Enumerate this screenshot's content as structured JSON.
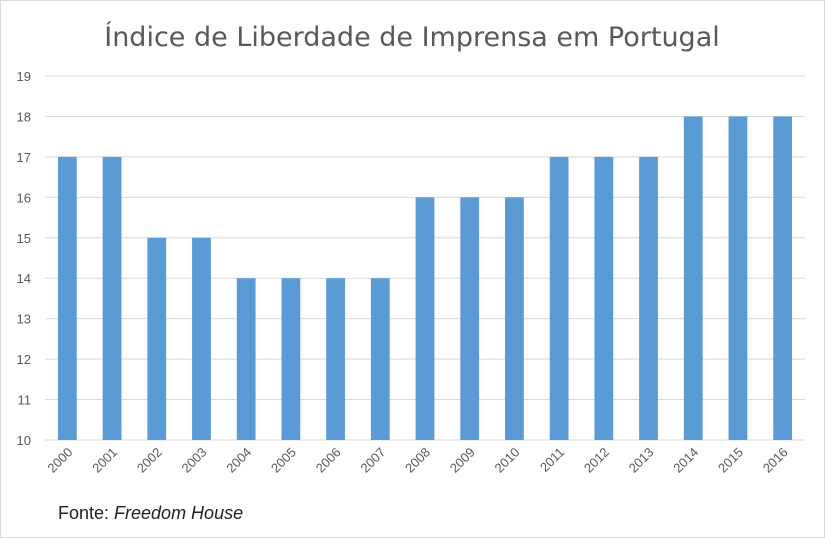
{
  "colors": {
    "bar": "#5b9bd5",
    "grid": "#d9d9d9",
    "text": "#595959"
  },
  "source": {
    "prefix": "Fonte: ",
    "name": "Freedom House"
  },
  "chart_data": {
    "type": "bar",
    "title": "Índice de Liberdade de Imprensa em Portugal",
    "xlabel": "",
    "ylabel": "",
    "categories": [
      "2000",
      "2001",
      "2002",
      "2003",
      "2004",
      "2005",
      "2006",
      "2007",
      "2008",
      "2009",
      "2010",
      "2011",
      "2012",
      "2013",
      "2014",
      "2015",
      "2016"
    ],
    "values": [
      17,
      17,
      15,
      15,
      14,
      14,
      14,
      14,
      16,
      16,
      16,
      17,
      17,
      17,
      18,
      18,
      18
    ],
    "ylim": [
      10,
      19
    ],
    "yticks": [
      "10",
      "11",
      "12",
      "13",
      "14",
      "15",
      "16",
      "17",
      "18",
      "19"
    ],
    "grid": true,
    "legend": "none"
  }
}
